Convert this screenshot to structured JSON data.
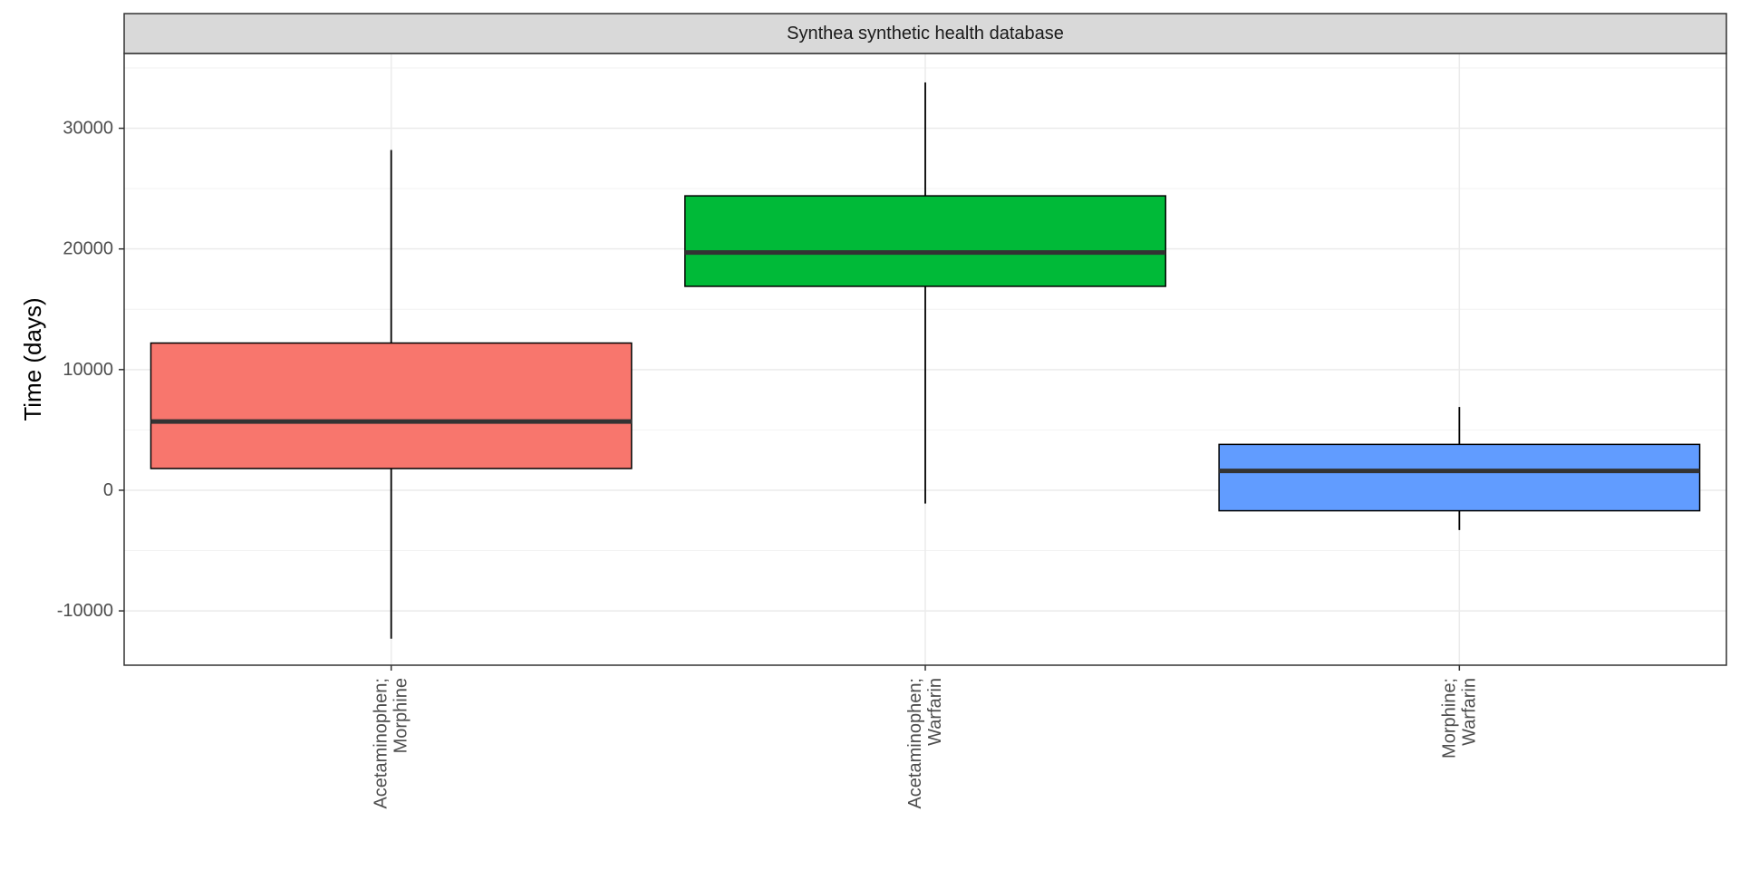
{
  "chart_data": {
    "type": "boxplot",
    "facet_title": "Synthea synthetic health database",
    "ylabel": "Time (days)",
    "xlabel": "",
    "ylim": [
      -14500,
      36200
    ],
    "y_ticks": [
      -10000,
      0,
      10000,
      20000,
      30000
    ],
    "y_tick_labels": [
      "-10000",
      "0",
      "10000",
      "20000",
      "30000"
    ],
    "grid": true,
    "legend": "none",
    "categories": [
      {
        "label_lines": [
          "Acetaminophen;",
          "Morphine"
        ],
        "color": "#F8766D",
        "whisker_low": -12300,
        "q1": 1800,
        "median": 5700,
        "q3": 12200,
        "whisker_high": 28200
      },
      {
        "label_lines": [
          "Acetaminophen;",
          "Warfarin"
        ],
        "color": "#00BA38",
        "whisker_low": -1100,
        "q1": 16900,
        "median": 19700,
        "q3": 24400,
        "whisker_high": 33800
      },
      {
        "label_lines": [
          "Morphine;",
          "Warfarin"
        ],
        "color": "#619CFF",
        "whisker_low": -3300,
        "q1": -1700,
        "median": 1600,
        "q3": 3800,
        "whisker_high": 6900
      }
    ]
  }
}
